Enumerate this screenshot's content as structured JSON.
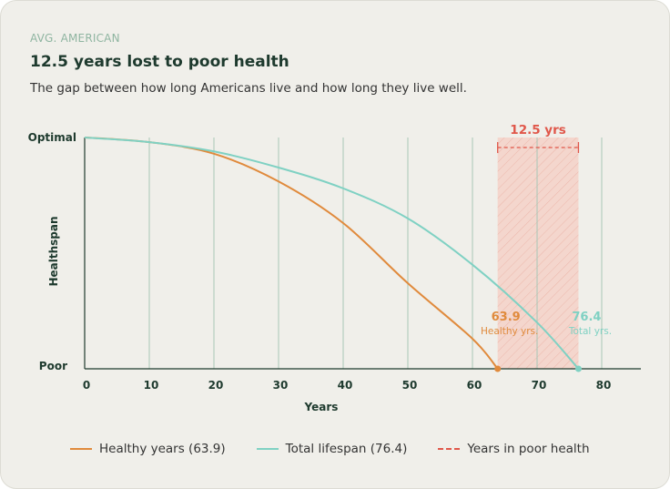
{
  "header": {
    "eyebrow": "AVG. AMERICAN",
    "title": "12.5 years lost to poor health",
    "subtitle": "The gap between how long Americans live and how long they live well."
  },
  "colors": {
    "healthy": "#e08a3c",
    "total": "#7fd1c3",
    "gap": "#e0574a",
    "gap_fill": "#f5cfc6",
    "grid": "#a9c7b6",
    "axis": "#1e3a2e"
  },
  "chart_data": {
    "type": "line",
    "xlabel": "Years",
    "ylabel": "Healthspan",
    "xlim": [
      0,
      86
    ],
    "x_ticks": [
      0,
      10,
      20,
      30,
      40,
      50,
      60,
      70,
      80
    ],
    "y_ticks": [
      "Optimal",
      "Poor"
    ],
    "grid": "vertical",
    "series": [
      {
        "name": "Healthy years (63.9)",
        "end": 63.9,
        "x": [
          0,
          10,
          20,
          30,
          40,
          50,
          60,
          63.9
        ],
        "y": [
          1.0,
          0.98,
          0.93,
          0.81,
          0.63,
          0.37,
          0.13,
          0.0
        ]
      },
      {
        "name": "Total lifespan (76.4)",
        "end": 76.4,
        "x": [
          0,
          10,
          20,
          30,
          40,
          50,
          60,
          70,
          76.4
        ],
        "y": [
          1.0,
          0.98,
          0.94,
          0.87,
          0.78,
          0.65,
          0.45,
          0.2,
          0.0
        ]
      }
    ],
    "annotations": [
      {
        "value": "63.9",
        "label": "Healthy yrs.",
        "series": 0
      },
      {
        "value": "76.4",
        "label": "Total yrs.",
        "series": 1
      }
    ],
    "gap": {
      "from": 63.9,
      "to": 76.4,
      "label": "12.5 yrs",
      "legend": "Years in poor health"
    }
  }
}
